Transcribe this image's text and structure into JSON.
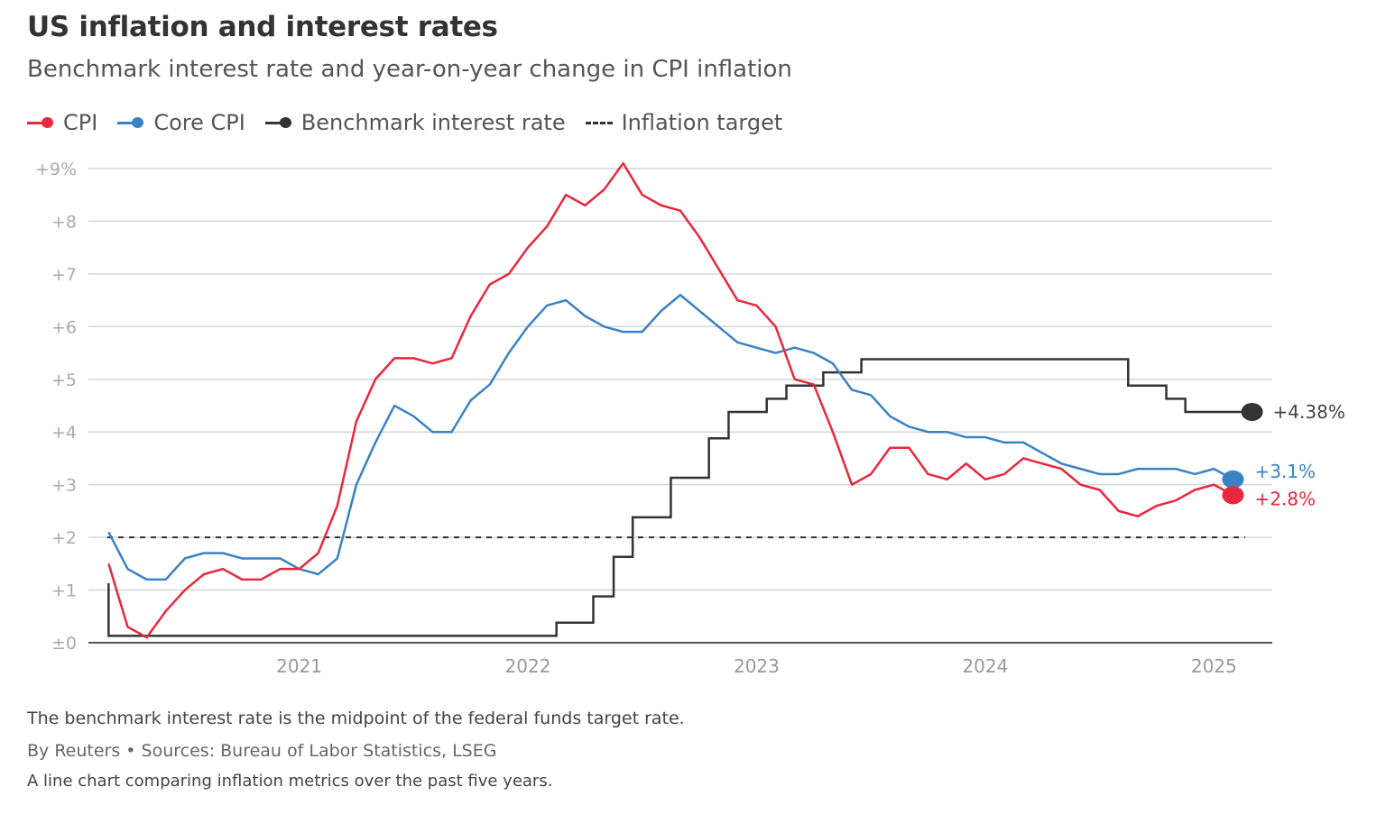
{
  "chart_data": {
    "type": "line",
    "title": "US inflation and interest rates",
    "subtitle": "Benchmark interest rate and year-on-year change in CPI inflation",
    "xlabel": "",
    "ylabel": "",
    "ylim": [
      0,
      9
    ],
    "y_ticks": [
      {
        "v": 0,
        "label": "±0"
      },
      {
        "v": 1,
        "label": "+1"
      },
      {
        "v": 2,
        "label": "+2"
      },
      {
        "v": 3,
        "label": "+3"
      },
      {
        "v": 4,
        "label": "+4"
      },
      {
        "v": 5,
        "label": "+5"
      },
      {
        "v": 6,
        "label": "+6"
      },
      {
        "v": 7,
        "label": "+7"
      },
      {
        "v": 8,
        "label": "+8"
      },
      {
        "v": 9,
        "label": "+9%"
      }
    ],
    "x_ticks": [
      {
        "date": "2021-01-01",
        "label": "2021"
      },
      {
        "date": "2022-01-01",
        "label": "2022"
      },
      {
        "date": "2023-01-01",
        "label": "2023"
      },
      {
        "date": "2024-01-01",
        "label": "2024"
      },
      {
        "date": "2025-01-01",
        "label": "2025"
      }
    ],
    "grid": true,
    "legend_placement": "top-left",
    "x_start": "2020-03",
    "series": [
      {
        "name": "CPI",
        "color": "#e8283c",
        "end_label": "+2.8%",
        "values": [
          1.5,
          0.3,
          0.1,
          0.6,
          1.0,
          1.3,
          1.4,
          1.2,
          1.2,
          1.4,
          1.4,
          1.7,
          2.6,
          4.2,
          5.0,
          5.4,
          5.4,
          5.3,
          5.4,
          6.2,
          6.8,
          7.0,
          7.5,
          7.9,
          8.5,
          8.3,
          8.6,
          9.1,
          8.5,
          8.3,
          8.2,
          7.7,
          7.1,
          6.5,
          6.4,
          6.0,
          5.0,
          4.9,
          4.0,
          3.0,
          3.2,
          3.7,
          3.7,
          3.2,
          3.1,
          3.4,
          3.1,
          3.2,
          3.5,
          3.4,
          3.3,
          3.0,
          2.9,
          2.5,
          2.4,
          2.6,
          2.7,
          2.9,
          3.0,
          2.8
        ]
      },
      {
        "name": "Core CPI",
        "color": "#3a82c4",
        "end_label": "+3.1%",
        "values": [
          2.1,
          1.4,
          1.2,
          1.2,
          1.6,
          1.7,
          1.7,
          1.6,
          1.6,
          1.6,
          1.4,
          1.3,
          1.6,
          3.0,
          3.8,
          4.5,
          4.3,
          4.0,
          4.0,
          4.6,
          4.9,
          5.5,
          6.0,
          6.4,
          6.5,
          6.2,
          6.0,
          5.9,
          5.9,
          6.3,
          6.6,
          6.3,
          6.0,
          5.7,
          5.6,
          5.5,
          5.6,
          5.5,
          5.3,
          4.8,
          4.7,
          4.3,
          4.1,
          4.0,
          4.0,
          3.9,
          3.9,
          3.8,
          3.8,
          3.6,
          3.4,
          3.3,
          3.2,
          3.2,
          3.3,
          3.3,
          3.3,
          3.2,
          3.3,
          3.1
        ]
      },
      {
        "name": "Benchmark interest rate",
        "color": "#333333",
        "end_label": "+4.38%",
        "step": true,
        "points": [
          [
            "2020-03-01",
            1.13
          ],
          [
            "2020-03-01",
            0.13
          ],
          [
            "2022-02-16",
            0.38
          ],
          [
            "2022-04-14",
            0.88
          ],
          [
            "2022-05-16",
            1.63
          ],
          [
            "2022-06-16",
            2.38
          ],
          [
            "2022-08-16",
            3.13
          ],
          [
            "2022-10-16",
            3.88
          ],
          [
            "2022-11-17",
            4.38
          ],
          [
            "2023-01-17",
            4.63
          ],
          [
            "2023-02-18",
            4.88
          ],
          [
            "2023-04-16",
            5.13
          ],
          [
            "2023-06-16",
            5.38
          ],
          [
            "2024-08-16",
            4.88
          ],
          [
            "2024-10-16",
            4.63
          ],
          [
            "2024-11-16",
            4.38
          ],
          [
            "2025-03-01",
            4.38
          ]
        ]
      },
      {
        "name": "Inflation target",
        "color": "#333333",
        "dashed": true,
        "value": 2
      }
    ]
  },
  "notes": {
    "definition": "The benchmark interest rate is the midpoint of the federal funds target rate.",
    "byline": "By Reuters • Sources: Bureau of Labor Statistics, LSEG",
    "description": "A line chart comparing inflation metrics over the past five years."
  }
}
